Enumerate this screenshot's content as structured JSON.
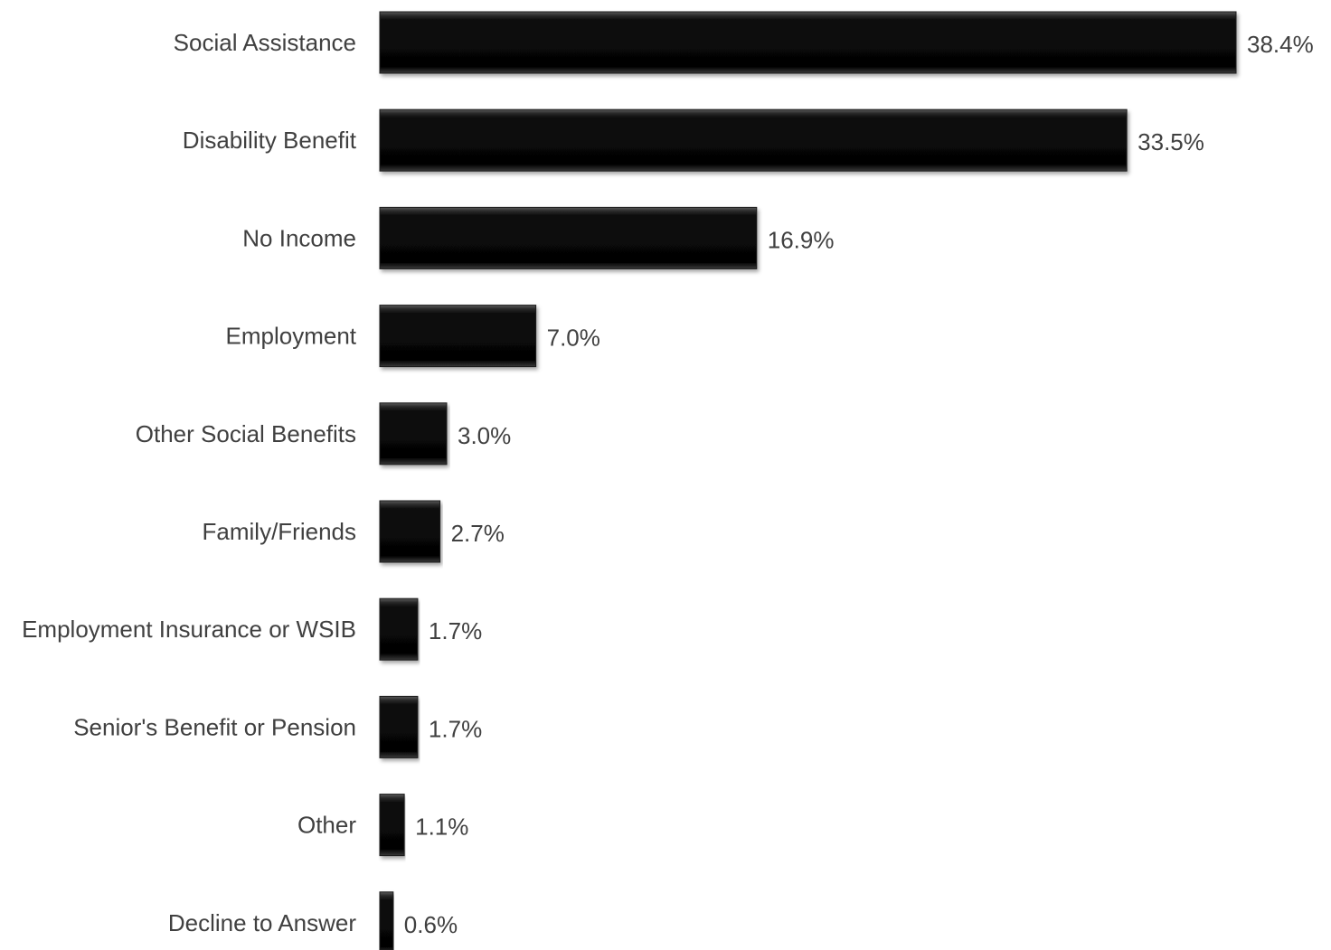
{
  "chart_data": {
    "type": "bar",
    "orientation": "horizontal",
    "categories": [
      "Social Assistance",
      "Disability Benefit",
      "No Income",
      "Employment",
      "Other Social Benefits",
      "Family/Friends",
      "Employment Insurance or WSIB",
      "Senior's Benefit or Pension",
      "Other",
      "Decline to Answer"
    ],
    "values": [
      38.4,
      33.5,
      16.9,
      7.0,
      3.0,
      2.7,
      1.7,
      1.7,
      1.1,
      0.6
    ],
    "data_labels": [
      "38.4%",
      "33.5%",
      "16.9%",
      "7.0%",
      "3.0%",
      "2.7%",
      "1.7%",
      "1.7%",
      "1.1%",
      "0.6%"
    ],
    "unit": "%",
    "xlim": [
      0,
      38.4
    ],
    "grid": false,
    "legend": "none",
    "bar_color": "#0d0d0d",
    "label_color": "#404040"
  }
}
